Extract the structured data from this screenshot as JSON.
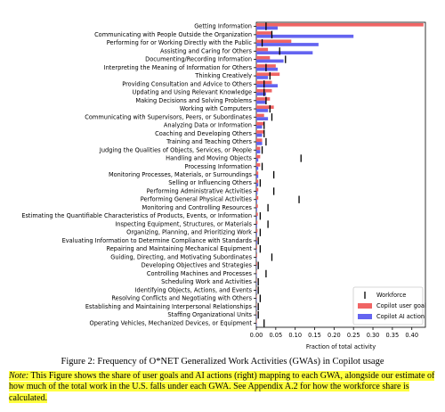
{
  "chart_data": {
    "type": "hbar",
    "xlabel": "Fraction of total activity",
    "categories": [
      "Getting Information",
      "Communicating with People Outside the Organization",
      "Performing for or Working Directly with the Public",
      "Assisting and Caring for Others",
      "Documenting/Recording Information",
      "Interpreting the Meaning of Information for Others",
      "Thinking Creatively",
      "Providing Consultation and Advice to Others",
      "Updating and Using Relevant Knowledge",
      "Making Decisions and Solving Problems",
      "Working with Computers",
      "Communicating with Supervisors, Peers, or Subordinates",
      "Analyzing Data or Information",
      "Coaching and Developing Others",
      "Training and Teaching Others",
      "Judging the Qualities of Objects, Services, or People",
      "Handling and Moving Objects",
      "Processing Information",
      "Monitoring Processes, Materials, or Surroundings",
      "Selling or Influencing Others",
      "Performing Administrative Activities",
      "Performing General Physical Activities",
      "Monitoring and Controlling Resources",
      "Estimating the Quantifiable Characteristics of Products, Events, or Information",
      "Inspecting Equipment, Structures, or Materials",
      "Organizing, Planning, and Prioritizing Work",
      "Evaluating Information to Determine Compliance with Standards",
      "Repairing and Maintaining Mechanical Equipment",
      "Guiding, Directing, and Motivating Subordinates",
      "Developing Objectives and Strategies",
      "Controlling Machines and Processes",
      "Scheduling Work and Activities",
      "Identifying Objects, Actions, and Events",
      "Resolving Conflicts and Negotiating with Others",
      "Establishing and Maintaining Interpersonal Relationships",
      "Staffing Organizational Units",
      "Operating Vehicles, Mechanized Devices, or Equipment"
    ],
    "series": [
      {
        "name": "Workforce",
        "style": "tick",
        "color": "#000000",
        "values": [
          0.025,
          0.04,
          0.015,
          0.06,
          0.075,
          0.025,
          0.035,
          0.02,
          0.02,
          0.025,
          0.035,
          0.04,
          0.02,
          0.02,
          0.025,
          0.015,
          0.115,
          0.015,
          0.045,
          0.01,
          0.045,
          0.11,
          0.03,
          0.01,
          0.03,
          0.01,
          0.005,
          0.01,
          0.04,
          0.005,
          0.025,
          0.005,
          0.005,
          0.01,
          0.005,
          0.005,
          0.02
        ]
      },
      {
        "name": "Copilot user goal",
        "style": "bar",
        "color": "#f06464",
        "values": [
          0.43,
          0.04,
          0.09,
          0.03,
          0.035,
          0.05,
          0.06,
          0.04,
          0.04,
          0.035,
          0.045,
          0.02,
          0.02,
          0.02,
          0.015,
          0.01,
          0.01,
          0.01,
          0.005,
          0.005,
          0.005,
          0.005,
          0.004,
          0.004,
          0.003,
          0.003,
          0.002,
          0.002,
          0.002,
          0.002,
          0.001,
          0.001,
          0.001,
          0.001,
          0.001,
          0.001,
          0.001
        ]
      },
      {
        "name": "Copilot AI action",
        "style": "bar",
        "color": "#6464f0",
        "values": [
          0.055,
          0.25,
          0.16,
          0.145,
          0.07,
          0.055,
          0.03,
          0.055,
          0.025,
          0.025,
          0.03,
          0.03,
          0.015,
          0.015,
          0.015,
          0.01,
          0.005,
          0.005,
          0.005,
          0.005,
          0.003,
          0.002,
          0.002,
          0.002,
          0.002,
          0.002,
          0.002,
          0.001,
          0.001,
          0.001,
          0.001,
          0.001,
          0.001,
          0.001,
          0.001,
          0.001,
          0.001
        ]
      }
    ],
    "xlim": [
      0,
      0.435
    ],
    "xticks": [
      {
        "value": 0,
        "label": "0.00"
      },
      {
        "value": 0.05,
        "label": "0.05"
      },
      {
        "value": 0.1,
        "label": "0.10"
      },
      {
        "value": 0.15,
        "label": "0.15"
      },
      {
        "value": 0.2,
        "label": "0.20"
      },
      {
        "value": 0.25,
        "label": "0.25"
      },
      {
        "value": 0.3,
        "label": "0.30"
      },
      {
        "value": 0.35,
        "label": "0.35"
      },
      {
        "value": 0.4,
        "label": "0.40"
      }
    ],
    "legend": "lower right"
  },
  "caption": "Figure 2: Frequency of O*NET Generalized Work Activities (GWAs) in Copilot usage",
  "note_label": "Note:",
  "note": "This Figure shows the share of user goals and AI actions (right) mapping to each GWA, alongside our estimate of how much of the total work in the U.S. falls under each GWA. See Appendix A.2 for how the workforce share is calculated."
}
